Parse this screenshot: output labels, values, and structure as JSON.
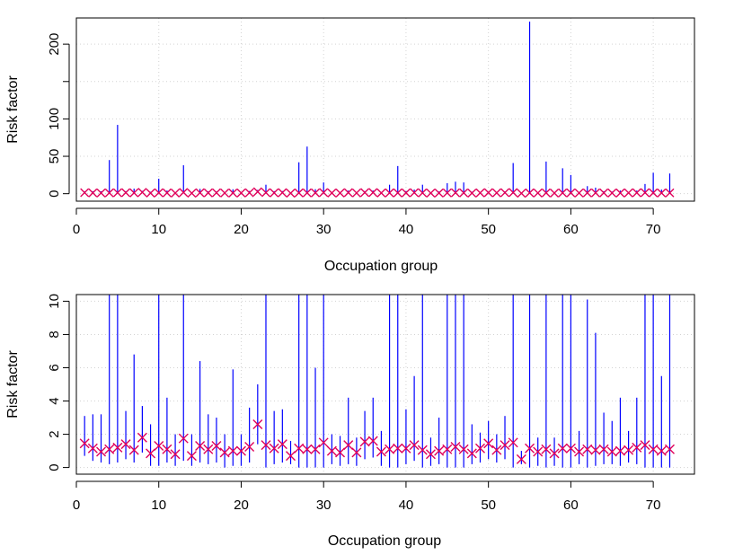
{
  "chart_data": [
    {
      "type": "scatter",
      "panel": "top",
      "xlabel": "Occupation group",
      "ylabel": "Risk factor",
      "xlim": [
        0,
        75
      ],
      "ylim": [
        -10,
        235
      ],
      "xticks": [
        0,
        10,
        20,
        30,
        40,
        50,
        60,
        70
      ],
      "yticks": [
        0,
        50,
        100,
        200
      ],
      "yminor_ticks": [
        150
      ],
      "grid": true,
      "x": [
        1,
        2,
        3,
        4,
        5,
        6,
        7,
        8,
        9,
        10,
        11,
        12,
        13,
        14,
        15,
        16,
        17,
        18,
        19,
        20,
        21,
        22,
        23,
        24,
        25,
        26,
        27,
        28,
        29,
        30,
        31,
        32,
        33,
        34,
        35,
        36,
        37,
        38,
        39,
        40,
        41,
        42,
        43,
        44,
        45,
        46,
        47,
        48,
        49,
        50,
        51,
        52,
        53,
        54,
        55,
        56,
        57,
        58,
        59,
        60,
        61,
        62,
        63,
        64,
        65,
        66,
        67,
        68,
        69,
        70,
        71,
        72
      ],
      "estimates": [
        1.45,
        1.15,
        0.95,
        1.1,
        1.2,
        1.4,
        1.05,
        1.8,
        0.85,
        1.3,
        1.1,
        0.8,
        1.75,
        0.7,
        1.3,
        1.1,
        1.3,
        0.9,
        1.0,
        1.0,
        1.25,
        2.6,
        1.35,
        1.15,
        1.4,
        0.7,
        1.15,
        1.1,
        1.1,
        1.5,
        1.0,
        0.9,
        1.35,
        0.9,
        1.55,
        1.6,
        0.95,
        1.1,
        1.15,
        1.15,
        1.35,
        1.05,
        0.8,
        1.0,
        1.1,
        1.25,
        1.1,
        0.85,
        1.15,
        1.45,
        1.05,
        1.35,
        1.5,
        0.5,
        1.15,
        0.95,
        1.1,
        0.85,
        1.15,
        1.15,
        0.95,
        1.1,
        1.05,
        1.1,
        0.95,
        1.0,
        1.05,
        1.2,
        1.35,
        1.1,
        1.0,
        1.1
      ],
      "lower": [
        0.7,
        0.4,
        0.3,
        0.2,
        0.3,
        0.5,
        0.3,
        0.9,
        0.1,
        0.1,
        0.3,
        0.1,
        0.4,
        0.1,
        0.3,
        0.2,
        0.3,
        0.0,
        0.1,
        0.1,
        0.3,
        1.4,
        0.0,
        0.2,
        0.3,
        0.2,
        0.0,
        0.0,
        0.0,
        0.0,
        0.2,
        0.1,
        0.2,
        0.1,
        0.5,
        0.6,
        0.1,
        0.0,
        0.0,
        0.2,
        0.4,
        0.0,
        0.1,
        0.2,
        0.0,
        0.0,
        0.0,
        0.2,
        0.3,
        0.5,
        0.3,
        0.5,
        0.0,
        0.2,
        0.0,
        0.1,
        0.0,
        0.1,
        0.0,
        0.0,
        0.2,
        0.0,
        0.1,
        0.2,
        0.2,
        0.1,
        0.3,
        0.2,
        0.0,
        0.0,
        0.0,
        0.0
      ],
      "upper": [
        3.1,
        3.2,
        3.2,
        45,
        92,
        3.4,
        6.8,
        3.7,
        2.6,
        20,
        4.2,
        2.0,
        38,
        2.0,
        6.4,
        3.2,
        3.0,
        2.0,
        5.9,
        2.0,
        3.6,
        5.0,
        12,
        3.4,
        3.5,
        1.6,
        42,
        63,
        6.0,
        15,
        2.0,
        1.9,
        4.2,
        1.8,
        3.4,
        4.2,
        2.2,
        12,
        37,
        3.5,
        5.5,
        12,
        1.8,
        3.0,
        14,
        16,
        15,
        2.6,
        2.1,
        2.8,
        2.0,
        3.1,
        41,
        1.0,
        230,
        1.8,
        43,
        1.8,
        34,
        25,
        2.2,
        10.1,
        8.1,
        3.3,
        2.8,
        4.2,
        2.2,
        4.2,
        13,
        28,
        5.5,
        27
      ]
    },
    {
      "type": "scatter",
      "panel": "bottom",
      "xlabel": "Occupation group",
      "ylabel": "Risk factor",
      "xlim": [
        0,
        75
      ],
      "ylim": [
        -0.4,
        10.4
      ],
      "xticks": [
        0,
        10,
        20,
        30,
        40,
        50,
        60,
        70
      ],
      "yticks": [
        0,
        2,
        4,
        6,
        8,
        10
      ],
      "grid": true,
      "note": "same data as top panel, y-axis clipped at 10.4"
    }
  ],
  "colors": {
    "interval": "#0000ff",
    "marker": "#e0005a",
    "grid": "#d3d3d3",
    "axis": "#000000"
  }
}
